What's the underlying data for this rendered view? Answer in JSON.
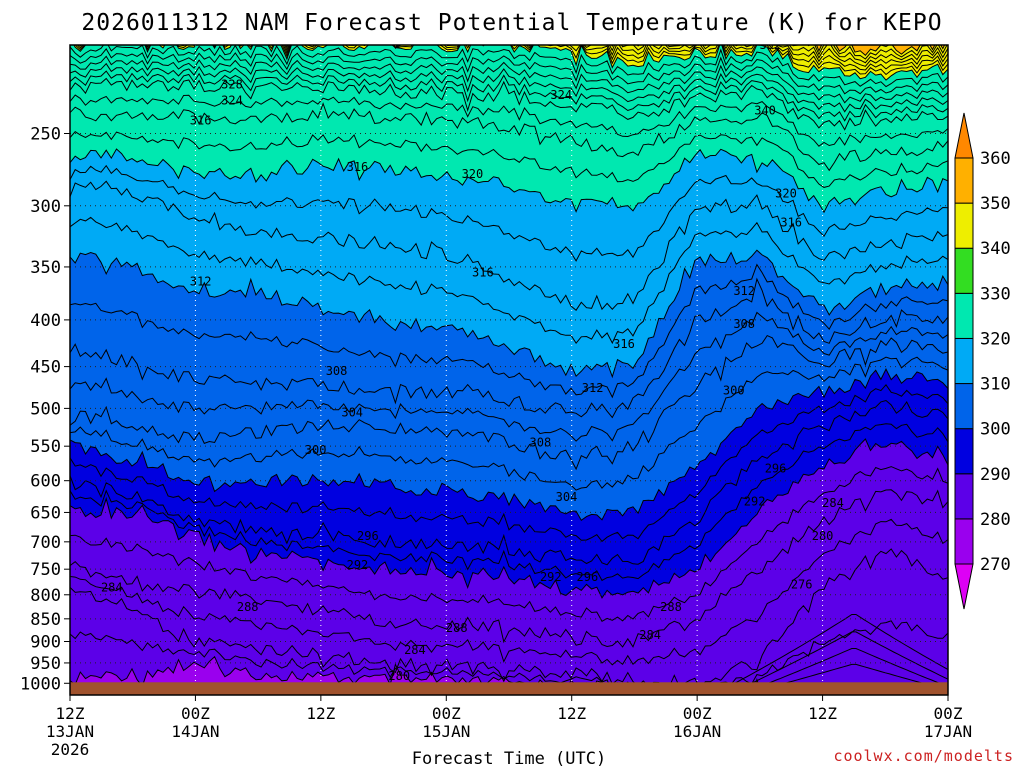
{
  "chart_data": {
    "type": "heatmap",
    "title": "2026011312 NAM Forecast Potential Temperature (K) for KEPO",
    "xlabel": "Forecast Time (UTC)",
    "ylabel": "",
    "credit": "coolwx.com/modelts",
    "y_axis": {
      "scale": "log-pressure",
      "inverted": true,
      "range_hpa": [
        1030,
        200
      ],
      "ticks": [
        1000,
        950,
        900,
        850,
        800,
        750,
        700,
        650,
        600,
        550,
        500,
        450,
        400,
        350,
        300,
        250
      ],
      "tick_labels": [
        "1000",
        "950",
        "900",
        "850",
        "800",
        "750",
        "700",
        "650",
        "600",
        "550",
        "500",
        "450",
        "400",
        "350",
        "300",
        "250"
      ]
    },
    "x_axis": {
      "range_hours": [
        0,
        84
      ],
      "ticks": [
        {
          "hour": 0,
          "label": "12Z",
          "date": "13JAN",
          "year": "2026"
        },
        {
          "hour": 12,
          "label": "00Z",
          "date": "14JAN",
          "year": ""
        },
        {
          "hour": 24,
          "label": "12Z",
          "date": "",
          "year": ""
        },
        {
          "hour": 36,
          "label": "00Z",
          "date": "15JAN",
          "year": ""
        },
        {
          "hour": 48,
          "label": "12Z",
          "date": "",
          "year": ""
        },
        {
          "hour": 60,
          "label": "00Z",
          "date": "16JAN",
          "year": ""
        },
        {
          "hour": 72,
          "label": "12Z",
          "date": "",
          "year": ""
        },
        {
          "hour": 84,
          "label": "00Z",
          "date": "17JAN",
          "year": ""
        }
      ]
    },
    "grid": true,
    "contour_interval_k": 2,
    "isentrope_profiles": {
      "hours": [
        0,
        6,
        12,
        18,
        24,
        30,
        36,
        42,
        48,
        54,
        60,
        66,
        72,
        78,
        84
      ],
      "series": [
        {
          "theta": 280,
          "pressure": [
            990,
            975,
            960,
            975,
            985,
            992,
            998,
            1000,
            1005,
            1015,
            1025,
            1030,
            1030,
            1030,
            1030
          ]
        },
        {
          "theta": 284,
          "pressure": [
            785,
            830,
            900,
            915,
            930,
            950,
            958,
            965,
            975,
            990,
            1000,
            945,
            790,
            720,
            760
          ]
        },
        {
          "theta": 288,
          "pressure": [
            745,
            770,
            795,
            810,
            830,
            855,
            860,
            868,
            890,
            900,
            850,
            755,
            665,
            610,
            640
          ]
        },
        {
          "theta": 292,
          "pressure": [
            645,
            655,
            690,
            720,
            735,
            748,
            755,
            765,
            790,
            800,
            750,
            640,
            575,
            545,
            570
          ]
        },
        {
          "theta": 296,
          "pressure": [
            605,
            625,
            660,
            680,
            690,
            700,
            705,
            715,
            730,
            735,
            660,
            565,
            520,
            495,
            510
          ]
        },
        {
          "theta": 300,
          "pressure": [
            550,
            570,
            600,
            600,
            600,
            608,
            615,
            628,
            655,
            650,
            580,
            500,
            480,
            458,
            470
          ]
        },
        {
          "theta": 304,
          "pressure": [
            510,
            520,
            540,
            530,
            520,
            525,
            530,
            545,
            565,
            550,
            470,
            420,
            445,
            425,
            430
          ]
        },
        {
          "theta": 308,
          "pressure": [
            430,
            445,
            465,
            470,
            472,
            478,
            480,
            490,
            505,
            495,
            400,
            375,
            420,
            400,
            400
          ]
        },
        {
          "theta": 312,
          "pressure": [
            340,
            350,
            370,
            375,
            385,
            400,
            410,
            428,
            455,
            445,
            345,
            340,
            390,
            370,
            360
          ]
        },
        {
          "theta": 316,
          "pressure": [
            285,
            290,
            310,
            320,
            325,
            330,
            340,
            360,
            385,
            380,
            300,
            300,
            345,
            330,
            320
          ]
        },
        {
          "theta": 320,
          "pressure": [
            262,
            265,
            275,
            278,
            270,
            272,
            278,
            285,
            300,
            300,
            265,
            265,
            300,
            290,
            280
          ]
        },
        {
          "theta": 324,
          "pressure": [
            238,
            238,
            240,
            240,
            238,
            240,
            242,
            245,
            255,
            262,
            242,
            240,
            268,
            262,
            258
          ]
        },
        {
          "theta": 328,
          "pressure": [
            222,
            222,
            222,
            222,
            222,
            224,
            226,
            228,
            232,
            240,
            228,
            225,
            245,
            242,
            238
          ]
        },
        {
          "theta": 340,
          "pressure": [
            200,
            200,
            200,
            200,
            200,
            200,
            200,
            201,
            203,
            208,
            205,
            202,
            215,
            215,
            212
          ]
        },
        {
          "theta": 352,
          "pressure": [
            195,
            195,
            195,
            195,
            195,
            195,
            195,
            195,
            195,
            195,
            196,
            195,
            200,
            201,
            199
          ]
        }
      ]
    },
    "contour_labels": [
      {
        "text": "328",
        "hour": 15.5,
        "p": 221
      },
      {
        "text": "324",
        "hour": 15.5,
        "p": 230
      },
      {
        "text": "316",
        "hour": 12.5,
        "p": 242
      },
      {
        "text": "316",
        "hour": 27.5,
        "p": 272
      },
      {
        "text": "320",
        "hour": 38.5,
        "p": 277
      },
      {
        "text": "324",
        "hour": 47,
        "p": 227
      },
      {
        "text": "352",
        "hour": 67,
        "p": 200
      },
      {
        "text": "340",
        "hour": 66.5,
        "p": 236
      },
      {
        "text": "320",
        "hour": 68.5,
        "p": 291
      },
      {
        "text": "316",
        "hour": 69,
        "p": 313
      },
      {
        "text": "312",
        "hour": 12.5,
        "p": 363
      },
      {
        "text": "316",
        "hour": 39.5,
        "p": 355
      },
      {
        "text": "312",
        "hour": 64.5,
        "p": 372
      },
      {
        "text": "316",
        "hour": 53,
        "p": 425
      },
      {
        "text": "308",
        "hour": 64.5,
        "p": 404
      },
      {
        "text": "312",
        "hour": 50,
        "p": 475
      },
      {
        "text": "308",
        "hour": 25.5,
        "p": 455
      },
      {
        "text": "304",
        "hour": 27,
        "p": 505
      },
      {
        "text": "308",
        "hour": 45,
        "p": 545
      },
      {
        "text": "300",
        "hour": 23.5,
        "p": 555
      },
      {
        "text": "300",
        "hour": 63.5,
        "p": 478
      },
      {
        "text": "296",
        "hour": 67.5,
        "p": 582
      },
      {
        "text": "304",
        "hour": 47.5,
        "p": 625
      },
      {
        "text": "292",
        "hour": 65.5,
        "p": 632
      },
      {
        "text": "284",
        "hour": 73,
        "p": 635
      },
      {
        "text": "296",
        "hour": 28.5,
        "p": 690
      },
      {
        "text": "280",
        "hour": 72,
        "p": 690
      },
      {
        "text": "292",
        "hour": 27.5,
        "p": 742
      },
      {
        "text": "292",
        "hour": 46,
        "p": 765
      },
      {
        "text": "296",
        "hour": 49.5,
        "p": 765
      },
      {
        "text": "284",
        "hour": 4,
        "p": 785
      },
      {
        "text": "276",
        "hour": 70,
        "p": 780
      },
      {
        "text": "288",
        "hour": 17,
        "p": 825
      },
      {
        "text": "288",
        "hour": 57.5,
        "p": 825
      },
      {
        "text": "288",
        "hour": 37,
        "p": 870
      },
      {
        "text": "284",
        "hour": 55.5,
        "p": 885
      },
      {
        "text": "284",
        "hour": 33,
        "p": 920
      },
      {
        "text": "280",
        "hour": 31.5,
        "p": 982
      }
    ],
    "colorbar": {
      "levels": [
        270,
        280,
        290,
        300,
        310,
        320,
        330,
        340,
        350,
        360
      ],
      "labels": [
        "270",
        "280",
        "290",
        "300",
        "310",
        "320",
        "330",
        "340",
        "350",
        "360"
      ],
      "units": "K",
      "colors": [
        "#dd00f5",
        "#9a00ee",
        "#5c00e8",
        "#0000e0",
        "#0064ea",
        "#00aaf5",
        "#00e8b0",
        "#33dd22",
        "#eeee00",
        "#ffb000",
        "#ff8800"
      ]
    },
    "ground_color": "#a0522d",
    "ground_level_hpa": 1000
  }
}
